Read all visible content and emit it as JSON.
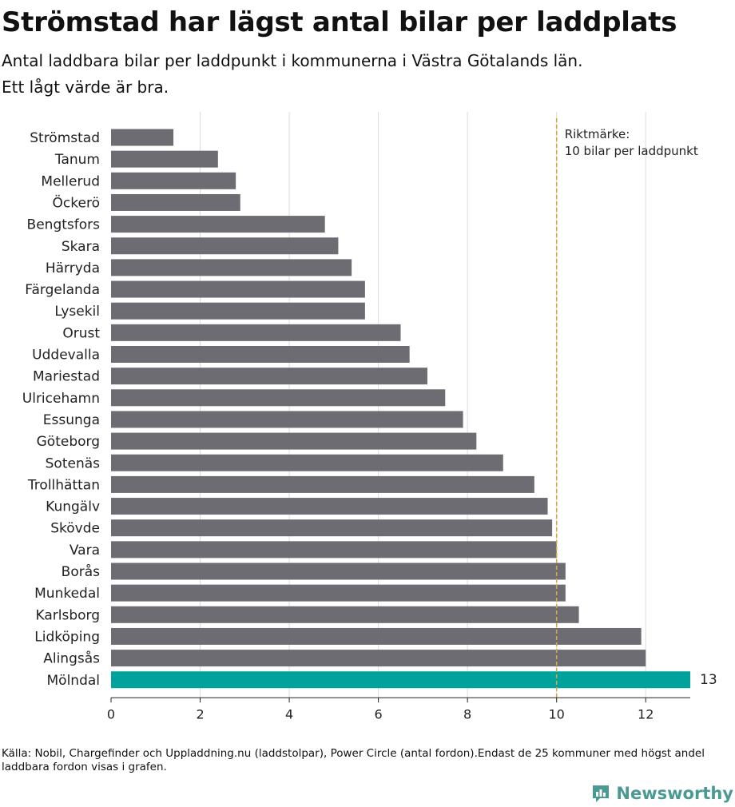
{
  "title": "Strömstad har lägst antal bilar per laddplats",
  "subtitle_line1": "Antal laddbara bilar per laddpunkt i kommunerna i Västra Götalands län.",
  "subtitle_line2": "Ett lågt värde är bra.",
  "source": "Källa: Nobil, Chargefinder och Uppladdning.nu (laddstolpar), Power Circle (antal fordon).Endast de 25 kommuner med högst andel laddbara fordon visas i grafen.",
  "brand": "Newsworthy",
  "colors": {
    "bar": "#6e6c73",
    "highlight": "#00a39b",
    "reference_line": "#d9a441",
    "grid": "#dcdcdc",
    "brand": "#4a9a93"
  },
  "chart_data": {
    "type": "bar",
    "orientation": "horizontal",
    "categories": [
      "Strömstad",
      "Tanum",
      "Mellerud",
      "Öckerö",
      "Bengtsfors",
      "Skara",
      "Härryda",
      "Färgelanda",
      "Lysekil",
      "Orust",
      "Uddevalla",
      "Mariestad",
      "Ulricehamn",
      "Essunga",
      "Göteborg",
      "Sotenäs",
      "Trollhättan",
      "Kungälv",
      "Skövde",
      "Vara",
      "Borås",
      "Munkedal",
      "Karlsborg",
      "Lidköping",
      "Alingsås",
      "Mölndal"
    ],
    "values": [
      1.4,
      2.4,
      2.8,
      2.9,
      4.8,
      5.1,
      5.4,
      5.7,
      5.7,
      6.5,
      6.7,
      7.1,
      7.5,
      7.9,
      8.2,
      8.8,
      9.5,
      9.8,
      9.9,
      10.0,
      10.2,
      10.2,
      10.5,
      11.9,
      12.0,
      13.0
    ],
    "highlight": "Mölndal",
    "highlight_label": "13",
    "xlim": [
      0,
      13
    ],
    "xticks": [
      0,
      2,
      4,
      6,
      8,
      10,
      12
    ],
    "grid": true,
    "reference_line": {
      "value": 10,
      "label_line1": "Riktmärke:",
      "label_line2": "10 bilar per laddpunkt"
    }
  }
}
